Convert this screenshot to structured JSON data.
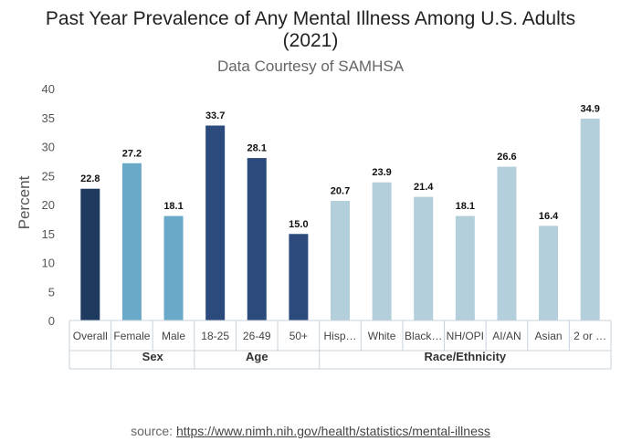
{
  "chart_data": {
    "type": "bar",
    "title_line1": "Past Year Prevalence of Any Mental Illness Among U.S. Adults",
    "title_line2": "(2021)",
    "subtitle": "Data Courtesy of SAMHSA",
    "ylabel": "Percent",
    "ylim": [
      0,
      40
    ],
    "yticks": [
      0,
      5,
      10,
      15,
      20,
      25,
      30,
      35,
      40
    ],
    "grid": false,
    "categories": [
      "Overall",
      "Female",
      "Male",
      "18-25",
      "26-49",
      "50+",
      "Hisp…",
      "White",
      "Black…",
      "NH/OPI",
      "AI/AN",
      "Asian",
      "2 or …"
    ],
    "values": [
      22.8,
      27.2,
      18.1,
      33.7,
      28.1,
      15.0,
      20.7,
      23.9,
      21.4,
      18.1,
      26.6,
      16.4,
      34.9
    ],
    "value_labels": [
      "22.8",
      "27.2",
      "18.1",
      "33.7",
      "28.1",
      "15.0",
      "20.7",
      "23.9",
      "21.4",
      "18.1",
      "26.6",
      "16.4",
      "34.9"
    ],
    "colors": [
      "#1f3a5f",
      "#6aaac8",
      "#6aaac8",
      "#2c4a7c",
      "#2c4a7c",
      "#2c4a7c",
      "#b3cfdc",
      "#b3cfdc",
      "#b3cfdc",
      "#b3cfdc",
      "#b3cfdc",
      "#b3cfdc",
      "#b3cfdc"
    ],
    "groups": [
      {
        "label": "",
        "count": 1
      },
      {
        "label": "Sex",
        "count": 2
      },
      {
        "label": "Age",
        "count": 3
      },
      {
        "label": "Race/Ethnicity",
        "count": 7
      }
    ]
  },
  "source": {
    "prefix": "source: ",
    "link_text": "https://www.nimh.nih.gov/health/statistics/mental-illness"
  }
}
